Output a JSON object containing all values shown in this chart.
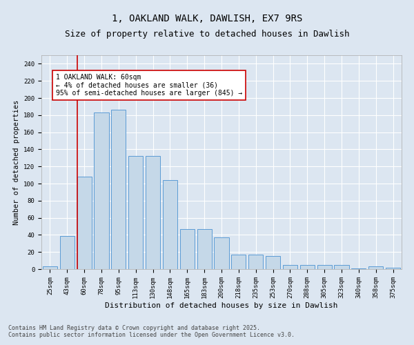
{
  "title": "1, OAKLAND WALK, DAWLISH, EX7 9RS",
  "subtitle": "Size of property relative to detached houses in Dawlish",
  "xlabel": "Distribution of detached houses by size in Dawlish",
  "ylabel": "Number of detached properties",
  "categories": [
    "25sqm",
    "43sqm",
    "60sqm",
    "78sqm",
    "95sqm",
    "113sqm",
    "130sqm",
    "148sqm",
    "165sqm",
    "183sqm",
    "200sqm",
    "218sqm",
    "235sqm",
    "253sqm",
    "270sqm",
    "288sqm",
    "305sqm",
    "323sqm",
    "340sqm",
    "358sqm",
    "375sqm"
  ],
  "values": [
    3,
    39,
    108,
    183,
    186,
    132,
    132,
    104,
    47,
    47,
    37,
    17,
    17,
    15,
    5,
    5,
    5,
    5,
    1,
    3,
    2
  ],
  "bar_color": "#c5d8e8",
  "bar_edge_color": "#5b9bd5",
  "marker_line_color": "#cc0000",
  "annotation_text": "1 OAKLAND WALK: 60sqm\n← 4% of detached houses are smaller (36)\n95% of semi-detached houses are larger (845) →",
  "annotation_box_color": "#ffffff",
  "annotation_box_edge_color": "#cc0000",
  "ylim": [
    0,
    250
  ],
  "yticks": [
    0,
    20,
    40,
    60,
    80,
    100,
    120,
    140,
    160,
    180,
    200,
    220,
    240
  ],
  "background_color": "#dce6f1",
  "plot_bg_color": "#dce6f1",
  "footer_text": "Contains HM Land Registry data © Crown copyright and database right 2025.\nContains public sector information licensed under the Open Government Licence v3.0.",
  "title_fontsize": 10,
  "subtitle_fontsize": 9,
  "xlabel_fontsize": 8,
  "ylabel_fontsize": 7.5,
  "tick_fontsize": 6.5,
  "annotation_fontsize": 7,
  "footer_fontsize": 6
}
